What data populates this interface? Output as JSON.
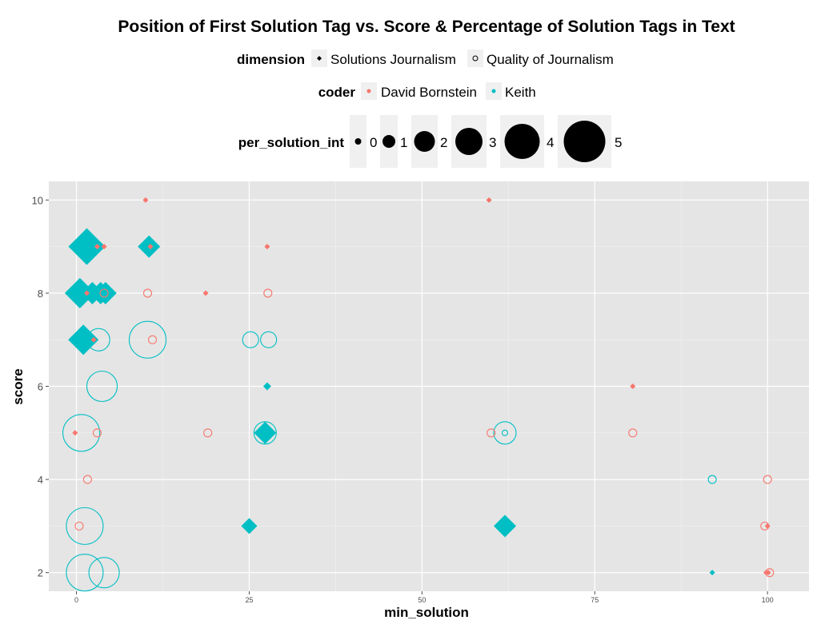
{
  "chart_data": {
    "type": "scatter",
    "title": "Position of First Solution Tag vs. Score & Percentage of Solution Tags in Text",
    "xlabel": "min_solution",
    "ylabel": "score",
    "xlim": [
      -4,
      106
    ],
    "ylim": [
      1.6,
      10.4
    ],
    "x_ticks": [
      0,
      25,
      50,
      75,
      100
    ],
    "y_ticks": [
      2,
      4,
      6,
      8,
      10
    ],
    "grid": true,
    "legend_position": "top",
    "colors": {
      "David Bornstein": "#F8766D",
      "Keith": "#00BFC4"
    },
    "legends": {
      "dimension": {
        "title": "dimension",
        "items": [
          "Solutions Journalism",
          "Quality of Journalism"
        ]
      },
      "coder": {
        "title": "coder",
        "items": [
          "David Bornstein",
          "Keith"
        ]
      },
      "size": {
        "title": "per_solution_int",
        "items": [
          "0",
          "1",
          "2",
          "3",
          "4",
          "5"
        ]
      }
    },
    "points": [
      {
        "x": 10,
        "y": 10,
        "coder": "David Bornstein",
        "dimension": "Solutions Journalism",
        "size": 0
      },
      {
        "x": 59.7,
        "y": 10,
        "coder": "David Bornstein",
        "dimension": "Solutions Journalism",
        "size": 0
      },
      {
        "x": 1.5,
        "y": 9,
        "coder": "Keith",
        "dimension": "Solutions Journalism",
        "size": 5
      },
      {
        "x": 10.5,
        "y": 9,
        "coder": "Keith",
        "dimension": "Solutions Journalism",
        "size": 3
      },
      {
        "x": 3,
        "y": 9,
        "coder": "David Bornstein",
        "dimension": "Solutions Journalism",
        "size": 0
      },
      {
        "x": 4,
        "y": 9,
        "coder": "David Bornstein",
        "dimension": "Solutions Journalism",
        "size": 0
      },
      {
        "x": 10.7,
        "y": 9,
        "coder": "David Bornstein",
        "dimension": "Solutions Journalism",
        "size": 0
      },
      {
        "x": 27.6,
        "y": 9,
        "coder": "David Bornstein",
        "dimension": "Solutions Journalism",
        "size": 0
      },
      {
        "x": 0.5,
        "y": 8,
        "coder": "Keith",
        "dimension": "Solutions Journalism",
        "size": 4
      },
      {
        "x": 2.3,
        "y": 8,
        "coder": "Keith",
        "dimension": "Solutions Journalism",
        "size": 3
      },
      {
        "x": 3.5,
        "y": 8,
        "coder": "Keith",
        "dimension": "Solutions Journalism",
        "size": 3
      },
      {
        "x": 4.2,
        "y": 8,
        "coder": "Keith",
        "dimension": "Solutions Journalism",
        "size": 3
      },
      {
        "x": 1.5,
        "y": 8,
        "coder": "David Bornstein",
        "dimension": "Solutions Journalism",
        "size": 0
      },
      {
        "x": 4,
        "y": 8,
        "coder": "David Bornstein",
        "dimension": "Quality of Journalism",
        "size": 1
      },
      {
        "x": 10.3,
        "y": 8,
        "coder": "David Bornstein",
        "dimension": "Quality of Journalism",
        "size": 1
      },
      {
        "x": 18.7,
        "y": 8,
        "coder": "David Bornstein",
        "dimension": "Solutions Journalism",
        "size": 0
      },
      {
        "x": 27.7,
        "y": 8,
        "coder": "David Bornstein",
        "dimension": "Quality of Journalism",
        "size": 1
      },
      {
        "x": 1,
        "y": 7,
        "coder": "Keith",
        "dimension": "Solutions Journalism",
        "size": 4
      },
      {
        "x": 2.5,
        "y": 7,
        "coder": "David Bornstein",
        "dimension": "Solutions Journalism",
        "size": 0
      },
      {
        "x": 3.2,
        "y": 7,
        "coder": "Keith",
        "dimension": "Quality of Journalism",
        "size": 3
      },
      {
        "x": 10.3,
        "y": 7,
        "coder": "Keith",
        "dimension": "Quality of Journalism",
        "size": 5
      },
      {
        "x": 11,
        "y": 7,
        "coder": "David Bornstein",
        "dimension": "Quality of Journalism",
        "size": 1
      },
      {
        "x": 25.2,
        "y": 7,
        "coder": "Keith",
        "dimension": "Quality of Journalism",
        "size": 2
      },
      {
        "x": 27.8,
        "y": 7,
        "coder": "Keith",
        "dimension": "Quality of Journalism",
        "size": 2
      },
      {
        "x": 3.7,
        "y": 6,
        "coder": "Keith",
        "dimension": "Quality of Journalism",
        "size": 4
      },
      {
        "x": 27.6,
        "y": 6,
        "coder": "Keith",
        "dimension": "Solutions Journalism",
        "size": 1
      },
      {
        "x": 80.5,
        "y": 6,
        "coder": "David Bornstein",
        "dimension": "Solutions Journalism",
        "size": 0
      },
      {
        "x": -0.2,
        "y": 5,
        "coder": "David Bornstein",
        "dimension": "Solutions Journalism",
        "size": 0
      },
      {
        "x": 0.7,
        "y": 5,
        "coder": "Keith",
        "dimension": "Quality of Journalism",
        "size": 5
      },
      {
        "x": 3,
        "y": 5,
        "coder": "David Bornstein",
        "dimension": "Quality of Journalism",
        "size": 1
      },
      {
        "x": 19,
        "y": 5,
        "coder": "David Bornstein",
        "dimension": "Quality of Journalism",
        "size": 1
      },
      {
        "x": 27.3,
        "y": 5,
        "coder": "Keith",
        "dimension": "Quality of Journalism",
        "size": 3
      },
      {
        "x": 27.3,
        "y": 5,
        "coder": "Keith",
        "dimension": "Solutions Journalism",
        "size": 3
      },
      {
        "x": 60,
        "y": 5,
        "coder": "David Bornstein",
        "dimension": "Quality of Journalism",
        "size": 1
      },
      {
        "x": 62,
        "y": 5,
        "coder": "Keith",
        "dimension": "Quality of Journalism",
        "size": 3
      },
      {
        "x": 62,
        "y": 5,
        "coder": "Keith",
        "dimension": "Quality of Journalism",
        "size": 0
      },
      {
        "x": 80.5,
        "y": 5,
        "coder": "David Bornstein",
        "dimension": "Quality of Journalism",
        "size": 1
      },
      {
        "x": 1.6,
        "y": 4,
        "coder": "David Bornstein",
        "dimension": "Quality of Journalism",
        "size": 1
      },
      {
        "x": 92,
        "y": 4,
        "coder": "Keith",
        "dimension": "Quality of Journalism",
        "size": 1
      },
      {
        "x": 100,
        "y": 4,
        "coder": "David Bornstein",
        "dimension": "Quality of Journalism",
        "size": 1
      },
      {
        "x": 1.2,
        "y": 3,
        "coder": "Keith",
        "dimension": "Quality of Journalism",
        "size": 5
      },
      {
        "x": 0.4,
        "y": 3,
        "coder": "David Bornstein",
        "dimension": "Quality of Journalism",
        "size": 1
      },
      {
        "x": 25,
        "y": 3,
        "coder": "Keith",
        "dimension": "Solutions Journalism",
        "size": 2
      },
      {
        "x": 62,
        "y": 3,
        "coder": "Keith",
        "dimension": "Solutions Journalism",
        "size": 3
      },
      {
        "x": 99.6,
        "y": 3,
        "coder": "David Bornstein",
        "dimension": "Quality of Journalism",
        "size": 1
      },
      {
        "x": 100,
        "y": 3,
        "coder": "David Bornstein",
        "dimension": "Solutions Journalism",
        "size": 0
      },
      {
        "x": 1.2,
        "y": 2,
        "coder": "Keith",
        "dimension": "Quality of Journalism",
        "size": 5
      },
      {
        "x": 4,
        "y": 2,
        "coder": "Keith",
        "dimension": "Quality of Journalism",
        "size": 4
      },
      {
        "x": 92,
        "y": 2,
        "coder": "Keith",
        "dimension": "Solutions Journalism",
        "size": 0
      },
      {
        "x": 99.8,
        "y": 2,
        "coder": "David Bornstein",
        "dimension": "Solutions Journalism",
        "size": 0
      },
      {
        "x": 100.1,
        "y": 2,
        "coder": "David Bornstein",
        "dimension": "Solutions Journalism",
        "size": 0
      },
      {
        "x": 100.3,
        "y": 2,
        "coder": "David Bornstein",
        "dimension": "Quality of Journalism",
        "size": 1
      }
    ]
  }
}
